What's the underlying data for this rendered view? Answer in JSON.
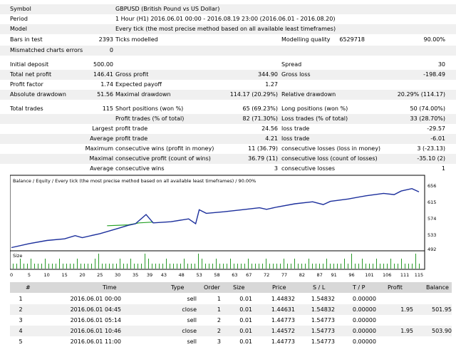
{
  "summary": {
    "symbol_label": "Symbol",
    "symbol_value": "GBPUSD (British Pound vs US Dollar)",
    "period_label": "Period",
    "period_value": "1 Hour (H1) 2016.06.01 00:00 - 2016.08.19 23:00 (2016.06.01 - 2016.08.20)",
    "model_label": "Model",
    "model_value": "Every tick (the most precise method based on all available least timeframes)",
    "bars_label": "Bars in test",
    "bars_value": "2393",
    "ticks_label": "Ticks modelled",
    "ticks_value": "6529718",
    "quality_label": "Modelling quality",
    "quality_value": "90.00%",
    "mismatch_label": "Mismatched charts errors",
    "mismatch_value": "0",
    "deposit_label": "Initial deposit",
    "deposit_value": "500.00",
    "spread_label": "Spread",
    "spread_value": "30",
    "net_label": "Total net profit",
    "net_value": "146.41",
    "gross_profit_label": "Gross profit",
    "gross_profit_value": "344.90",
    "gross_loss_label": "Gross loss",
    "gross_loss_value": "-198.49",
    "pf_label": "Profit factor",
    "pf_value": "1.74",
    "payoff_label": "Expected payoff",
    "payoff_value": "1.27",
    "abs_dd_label": "Absolute drawdown",
    "abs_dd_value": "51.56",
    "max_dd_label": "Maximal drawdown",
    "max_dd_value": "114.17 (20.29%)",
    "rel_dd_label": "Relative drawdown",
    "rel_dd_value": "20.29% (114.17)",
    "trades_label": "Total trades",
    "trades_value": "115",
    "short_label": "Short positions (won %)",
    "short_value": "65 (69.23%)",
    "long_label": "Long positions (won %)",
    "long_value": "50 (74.00%)",
    "ptrades_label": "Profit trades (% of total)",
    "ptrades_value": "82 (71.30%)",
    "ltrades_label": "Loss trades (% of total)",
    "ltrades_value": "33 (28.70%)",
    "largest_label": "Largest",
    "lp_label": "profit trade",
    "lp_value": "24.56",
    "ll_label": "loss trade",
    "ll_value": "-29.57",
    "average_label": "Average",
    "ap_label": "profit trade",
    "ap_value": "4.21",
    "al_label": "loss trade",
    "al_value": "-6.01",
    "maximum_label": "Maximum",
    "mcw_label": "consecutive wins (profit in money)",
    "mcw_value": "11 (36.79)",
    "mcl_label": "consecutive losses (loss in money)",
    "mcl_value": "3 (-23.13)",
    "maximal_label": "Maximal",
    "mcp_label": "consecutive profit (count of wins)",
    "mcp_value": "36.79 (11)",
    "mcloss_label": "consecutive loss (count of losses)",
    "mcloss_value": "-35.10 (2)",
    "average2_label": "Average",
    "acw_label": "consecutive wins",
    "acw_value": "3",
    "acl_label": "consecutive losses",
    "acl_value": "1"
  },
  "chart_data": {
    "type": "line",
    "title": "Balance / Equity / Every tick (the most precise method based on all available least timeframes) / 90.00%",
    "series": [
      {
        "name": "Balance",
        "color": "#1c2f9c",
        "x": [
          0,
          5,
          10,
          15,
          18,
          20,
          25,
          30,
          33,
          35,
          38,
          40,
          45,
          50,
          52,
          53,
          55,
          60,
          65,
          70,
          72,
          75,
          80,
          85,
          88,
          90,
          95,
          100,
          105,
          108,
          110,
          113,
          115
        ],
        "values": [
          500,
          510,
          518,
          522,
          530,
          525,
          535,
          548,
          556,
          560,
          583,
          562,
          565,
          572,
          560,
          595,
          586,
          590,
          595,
          600,
          596,
          602,
          610,
          615,
          608,
          616,
          622,
          630,
          636,
          633,
          642,
          648,
          640
        ]
      },
      {
        "name": "Equity",
        "color": "#24a024",
        "x": [
          27,
          33,
          36,
          40
        ],
        "values": [
          555,
          557,
          562,
          564
        ]
      }
    ],
    "ylim": [
      492,
      660
    ],
    "yticks": [
      "656",
      "615",
      "574",
      "533",
      "492"
    ],
    "size_label": "Size",
    "size_values": [
      1,
      1,
      2,
      1,
      1,
      2,
      1,
      1,
      1,
      2,
      1,
      1,
      1,
      2,
      1,
      1,
      1,
      1,
      2,
      1,
      1,
      1,
      1,
      2,
      3,
      1,
      1,
      1,
      1,
      1,
      2,
      1,
      1,
      2,
      1,
      1,
      1,
      3,
      2,
      1,
      1,
      1,
      1,
      2,
      1,
      1,
      1,
      1,
      2,
      1,
      1,
      1,
      3,
      2,
      1,
      1,
      1,
      2,
      1,
      1,
      1,
      2,
      1,
      1,
      1,
      1,
      2,
      1,
      1,
      1,
      1,
      2,
      1,
      1,
      1,
      1,
      2,
      1,
      1,
      2,
      1,
      1,
      1,
      2,
      1,
      1,
      1,
      1,
      2,
      1,
      1,
      1,
      1,
      2,
      1,
      3,
      1,
      1,
      2,
      1,
      1,
      1,
      2,
      1,
      1,
      1,
      2,
      1,
      1,
      2,
      1,
      1,
      1,
      3,
      1
    ],
    "xticks": [
      "0",
      "5",
      "10",
      "15",
      "20",
      "25",
      "30",
      "35",
      "39",
      "43",
      "48",
      "53",
      "58",
      "63",
      "67",
      "72",
      "77",
      "82",
      "87",
      "91",
      "96",
      "101",
      "106",
      "111",
      "115"
    ]
  },
  "trades": {
    "headers": [
      "#",
      "Time",
      "Type",
      "Order",
      "Size",
      "Price",
      "S / L",
      "T / P",
      "Profit",
      "Balance"
    ],
    "rows": [
      [
        "1",
        "2016.06.01 00:00",
        "sell",
        "1",
        "0.01",
        "1.44832",
        "1.54832",
        "0.00000",
        "",
        ""
      ],
      [
        "2",
        "2016.06.01 04:45",
        "close",
        "1",
        "0.01",
        "1.44631",
        "1.54832",
        "0.00000",
        "1.95",
        "501.95"
      ],
      [
        "3",
        "2016.06.01 05:14",
        "sell",
        "2",
        "0.01",
        "1.44773",
        "1.54773",
        "0.00000",
        "",
        ""
      ],
      [
        "4",
        "2016.06.01 10:46",
        "close",
        "2",
        "0.01",
        "1.44572",
        "1.54773",
        "0.00000",
        "1.95",
        "503.90"
      ],
      [
        "5",
        "2016.06.01 11:00",
        "sell",
        "3",
        "0.01",
        "1.44773",
        "1.54773",
        "0.00000",
        "",
        ""
      ]
    ]
  }
}
